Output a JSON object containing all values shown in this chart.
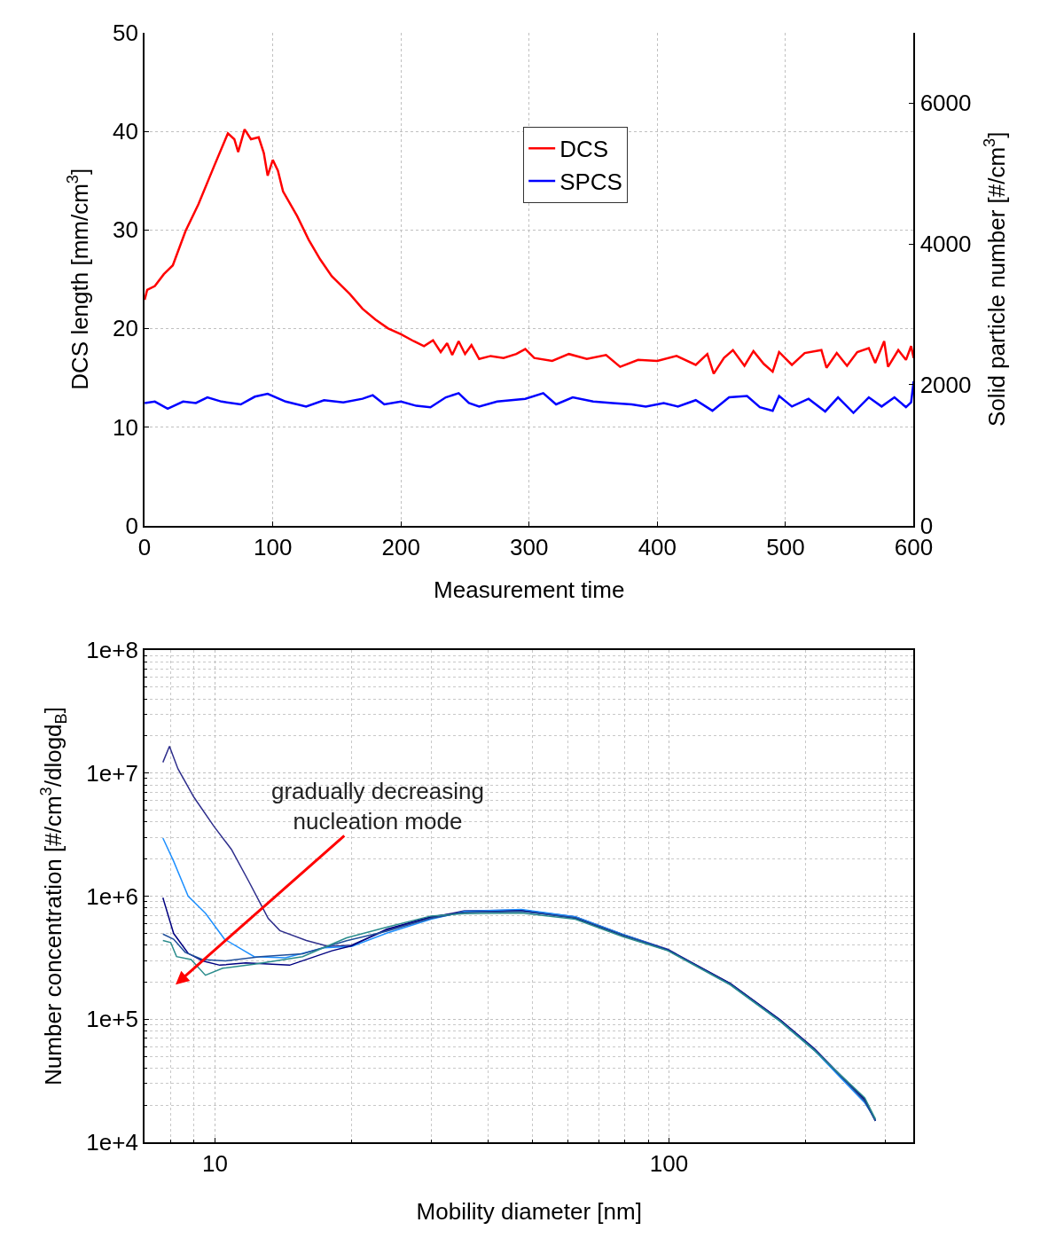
{
  "chart_data": [
    {
      "type": "line",
      "xlabel": "Measurement time",
      "ylabel": "DCS length [mm/cm$^{3}$]",
      "y2label": "Solid particle number [#/cm$^{3}$]",
      "xlim": [
        0,
        600
      ],
      "xticks": [
        0,
        100,
        200,
        300,
        400,
        500,
        600
      ],
      "ylim": [
        0,
        50
      ],
      "yticks": [
        0,
        10,
        20,
        30,
        40,
        50
      ],
      "y2lim": [
        0,
        7000
      ],
      "y2ticks": [
        0,
        2000,
        4000,
        6000
      ],
      "grid": true,
      "legend": "top right",
      "line_style": "solid",
      "marker": "none",
      "series": [
        {
          "name": "DCS",
          "color": "#ff0000",
          "x": [
            0,
            2,
            8,
            15,
            22,
            32,
            42,
            54,
            65,
            70,
            73,
            78,
            83,
            89,
            93,
            96,
            100,
            104,
            108,
            119,
            128,
            137,
            146,
            160,
            170,
            180,
            190,
            200,
            210,
            218,
            225,
            231,
            236,
            240,
            245,
            250,
            255,
            261,
            270,
            280,
            290,
            297,
            304,
            318,
            331,
            345,
            360,
            371,
            385,
            400,
            415,
            430,
            439,
            444,
            452,
            459,
            468,
            475,
            483,
            490,
            495,
            505,
            515,
            528,
            532,
            540,
            548,
            556,
            565,
            570,
            577,
            580,
            588,
            594,
            598,
            600
          ],
          "values": [
            22.9,
            23.9,
            24.3,
            25.5,
            26.4,
            29.9,
            32.6,
            36.4,
            39.8,
            39.2,
            37.9,
            40.2,
            39.2,
            39.4,
            37.8,
            35.5,
            37.1,
            36.0,
            33.9,
            31.4,
            29.0,
            27.0,
            25.3,
            23.5,
            22.0,
            20.9,
            20.0,
            19.4,
            18.7,
            18.2,
            18.8,
            17.6,
            18.5,
            17.3,
            18.7,
            17.4,
            18.3,
            16.9,
            17.2,
            17.0,
            17.4,
            17.9,
            17.0,
            16.7,
            17.4,
            16.9,
            17.3,
            16.1,
            16.8,
            16.7,
            17.2,
            16.3,
            17.4,
            15.4,
            17.0,
            17.8,
            16.2,
            17.7,
            16.4,
            15.6,
            17.6,
            16.3,
            17.5,
            17.8,
            16.0,
            17.5,
            16.2,
            17.6,
            18.0,
            16.5,
            18.7,
            16.1,
            17.8,
            16.8,
            18.2,
            17.0
          ]
        },
        {
          "name": "SPCS",
          "color": "#0000ff",
          "axis": "y2",
          "x": [
            0,
            8,
            18,
            30,
            40,
            49,
            60,
            75,
            86,
            96,
            110,
            126,
            140,
            155,
            170,
            178,
            187,
            200,
            212,
            223,
            235,
            245,
            253,
            261,
            275,
            297,
            311,
            321,
            334,
            350,
            365,
            380,
            391,
            405,
            416,
            430,
            443,
            456,
            470,
            480,
            490,
            495,
            505,
            518,
            531,
            541,
            553,
            565,
            575,
            585,
            594,
            598,
            600
          ],
          "values": [
            1740,
            1760,
            1660,
            1760,
            1740,
            1820,
            1760,
            1720,
            1830,
            1870,
            1760,
            1690,
            1780,
            1750,
            1800,
            1850,
            1720,
            1760,
            1700,
            1680,
            1820,
            1880,
            1740,
            1690,
            1760,
            1800,
            1880,
            1720,
            1820,
            1760,
            1740,
            1720,
            1690,
            1740,
            1690,
            1780,
            1630,
            1820,
            1840,
            1680,
            1630,
            1840,
            1690,
            1800,
            1620,
            1820,
            1600,
            1820,
            1690,
            1820,
            1680,
            1750,
            2050
          ]
        }
      ]
    },
    {
      "type": "line",
      "xlabel": "Mobility diameter [nm]",
      "ylabel": "Number concentration [#/cm$^{3}$/dlogd$_{B}$]",
      "log": "xy",
      "xlim": [
        7,
        346
      ],
      "xticks": [
        10,
        100
      ],
      "ylim": [
        10000,
        100000000
      ],
      "yticks": [
        {
          "value": 10000,
          "label": "1e+4"
        },
        {
          "value": 100000,
          "label": "1e+5"
        },
        {
          "value": 1000000,
          "label": "1e+6"
        },
        {
          "value": 10000000,
          "label": "1e+7"
        },
        {
          "value": 100000000,
          "label": "1e+8"
        }
      ],
      "grid": true,
      "legend": false,
      "line_style": "solid",
      "marker": "none",
      "annotations": [
        "gradually decreasing\nnucleation mode"
      ],
      "series": [
        {
          "color": "#2e2e8c",
          "x": [
            7.68,
            7.94,
            8.29,
            8.99,
            9.96,
            10.87,
            11.87,
            13.1,
            13.9,
            15.9,
            17.8,
            20,
            23.9,
            29.9,
            35.4,
            47.3,
            62.2,
            79,
            99.5,
            136.5,
            176,
            209,
            248,
            270,
            285
          ],
          "values": [
            12200000,
            16500000,
            10800000,
            6350000,
            3670000,
            2400000,
            1320000,
            660000,
            525000,
            437000,
            390000,
            400000,
            530000,
            670000,
            760000,
            770000,
            680000,
            490000,
            370000,
            195000,
            98000,
            57000,
            30000,
            22000,
            15000
          ]
        },
        {
          "color": "#1e90ff",
          "x": [
            7.68,
            8.11,
            8.73,
            9.53,
            10.5,
            12.2,
            14.3,
            17.4,
            20,
            23.9,
            29.9,
            35.4,
            47.3,
            62.2,
            79,
            99.5,
            136.5,
            176,
            209,
            248,
            270,
            285
          ],
          "values": [
            2960000,
            1920000,
            1000000,
            726000,
            447000,
            323000,
            316000,
            380000,
            390000,
            500000,
            650000,
            750000,
            780000,
            680000,
            490000,
            366000,
            192000,
            96000,
            56000,
            29000,
            21000,
            15500
          ]
        },
        {
          "color": "#000080",
          "x": [
            7.68,
            8.11,
            8.73,
            9.39,
            10.25,
            11.7,
            14.6,
            18.1,
            20,
            23.9,
            29.9,
            35.4,
            47.3,
            62.2,
            79,
            99.5,
            136.5,
            176,
            209,
            248,
            270,
            285
          ],
          "values": [
            970000,
            498000,
            343000,
            298000,
            275000,
            287000,
            275000,
            360000,
            395000,
            540000,
            680000,
            740000,
            760000,
            660000,
            480000,
            366000,
            196000,
            99000,
            58000,
            30500,
            22500,
            15000
          ]
        },
        {
          "color": "#1f4e9a",
          "x": [
            7.68,
            8.11,
            8.6,
            9.39,
            10.55,
            12.6,
            15.6,
            19.5,
            23.9,
            29.9,
            35.4,
            47.3,
            62.2,
            79,
            99.5,
            136.5,
            176,
            209,
            248,
            270,
            285
          ],
          "values": [
            492000,
            447000,
            350000,
            306000,
            298000,
            323000,
            341000,
            435000,
            520000,
            660000,
            740000,
            750000,
            670000,
            485000,
            362000,
            193000,
            97000,
            57000,
            30000,
            21500,
            15000
          ]
        },
        {
          "color": "#2a8c8c",
          "x": [
            7.68,
            7.99,
            8.23,
            8.86,
            9.53,
            10.4,
            12.2,
            15.6,
            19.5,
            23.9,
            29.9,
            35.4,
            47.3,
            62.2,
            79,
            99.5,
            136.5,
            176,
            209,
            248,
            270,
            285
          ],
          "values": [
            437000,
            420000,
            323000,
            306000,
            228000,
            260000,
            280000,
            323000,
            459000,
            560000,
            690000,
            720000,
            730000,
            650000,
            470000,
            360000,
            190000,
            96000,
            56000,
            31000,
            23000,
            15500
          ]
        }
      ]
    }
  ]
}
